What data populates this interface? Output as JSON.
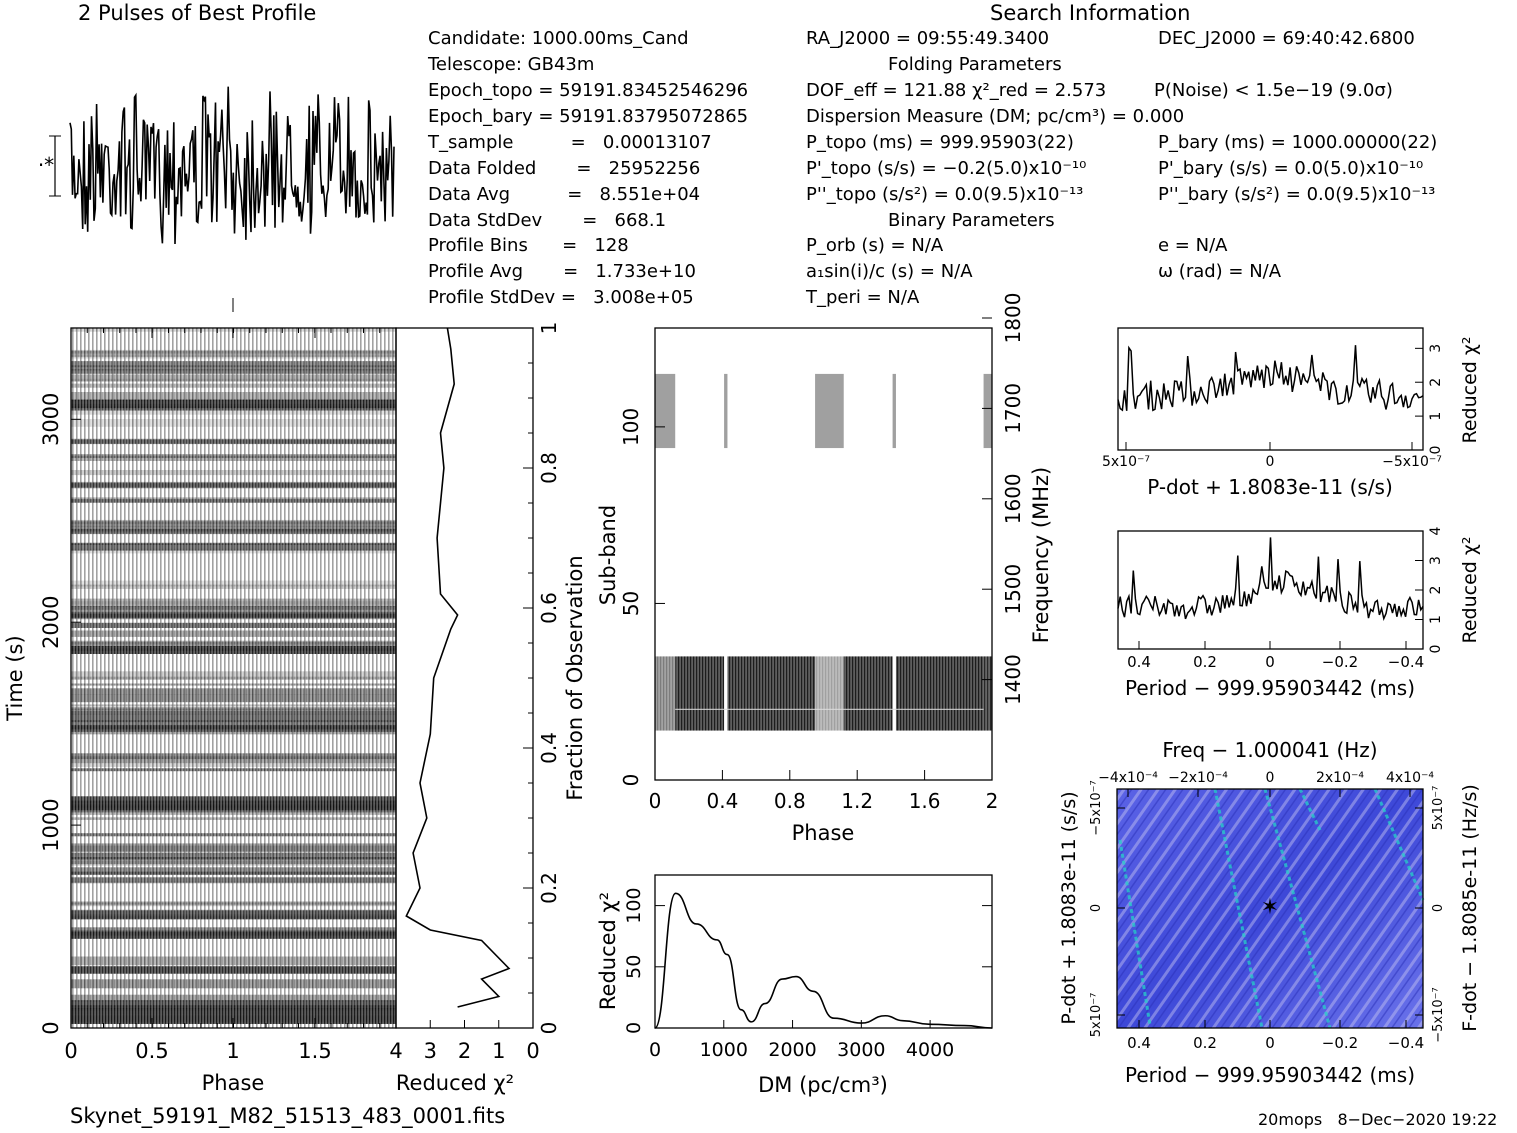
{
  "title_profile": "2 Pulses of Best Profile",
  "search_info_title": "Search Information",
  "candidate": {
    "candidate": "Candidate:  1000.00ms_Cand",
    "telescope": "Telescope:  GB43m",
    "epoch_topo": "Epoch_topo = 59191.83452546296",
    "epoch_bary": "Epoch_bary = 59191.83795072865",
    "t_sample": "T_sample          =   0.00013107",
    "data_folded": "Data Folded       =   25952256",
    "data_avg": "Data Avg          =   8.551e+04",
    "data_stddev": "Data StdDev       =   668.1",
    "profile_bins": "Profile Bins      =   128",
    "profile_avg": "Profile Avg       =   1.733e+10",
    "profile_stddev": "Profile StdDev =   3.008e+05"
  },
  "search": {
    "ra": "RA_J2000 = 09:55:49.3400",
    "dec": "DEC_J2000 = 69:40:42.6800",
    "folding_title": "Folding Parameters",
    "dof": "DOF_eff = 121.88  χ²_red = 2.573",
    "pnoise": "P(Noise) < 1.5e−19   (9.0σ)",
    "dm": "Dispersion Measure (DM; pc/cm³) = 0.000",
    "p_topo": "P_topo (ms) =  999.95903(22)",
    "p_bary": "P_bary (ms) =  1000.00000(22)",
    "pd_topo": "P'_topo (s/s) = −0.2(5.0)x10⁻¹⁰",
    "pd_bary": "P'_bary (s/s) = 0.0(5.0)x10⁻¹⁰",
    "pdd_topo": "P''_topo (s/s²) = 0.0(9.5)x10⁻¹³",
    "pdd_bary": "P''_bary (s/s²) = 0.0(9.5)x10⁻¹³",
    "binary_title": "Binary Parameters",
    "p_orb": "P_orb (s) = N/A",
    "e": "e = N/A",
    "a1sini": "a₁sin(i)/c (s) = N/A",
    "omega": "ω (rad) = N/A",
    "t_peri": "T_peri = N/A"
  },
  "footer": {
    "filename": "Skynet_59191_M82_51513_483_0001.fits",
    "stamp": "20mops   8−Dec−2020 19:22"
  },
  "colors": {
    "greyscale_dark": "#222222",
    "ppdot_blue": "#3d48d8",
    "ppdot_cyan": "#26d0c8"
  },
  "chart_data": [
    {
      "type": "line",
      "id": "pulse_profile",
      "title": "2 Pulses of Best Profile",
      "x": "phase 0–2",
      "values": "noisy profile, no clear pulse"
    },
    {
      "type": "heatmap",
      "id": "time_phase",
      "xlabel": "Phase",
      "ylabel": "Time (s)",
      "xlim": [
        0,
        2
      ],
      "ylim": [
        0,
        3450
      ],
      "xticks": [
        "0",
        "0.5",
        "1",
        "1.5"
      ],
      "yticks": [
        "0",
        "1000",
        "2000",
        "3000"
      ]
    },
    {
      "type": "line",
      "id": "time_chi2",
      "xlabel": "Reduced χ²",
      "ylabel": "Fraction of Observation",
      "xlim": [
        4,
        0
      ],
      "ylim": [
        0,
        1
      ],
      "xticks": [
        "4",
        "3",
        "2",
        "1",
        "0"
      ],
      "yticks": [
        "0",
        "0.2",
        "0.4",
        "0.6",
        "0.8",
        "1"
      ],
      "points": [
        [
          2.2,
          0.03
        ],
        [
          1.0,
          0.045
        ],
        [
          1.5,
          0.07
        ],
        [
          0.7,
          0.085
        ],
        [
          1.5,
          0.125
        ],
        [
          3.0,
          0.14
        ],
        [
          3.7,
          0.16
        ],
        [
          3.3,
          0.2
        ],
        [
          3.5,
          0.25
        ],
        [
          3.1,
          0.3
        ],
        [
          3.3,
          0.35
        ],
        [
          3.0,
          0.42
        ],
        [
          2.9,
          0.5
        ],
        [
          2.4,
          0.57
        ],
        [
          2.2,
          0.59
        ],
        [
          2.7,
          0.62
        ],
        [
          2.8,
          0.7
        ],
        [
          2.6,
          0.8
        ],
        [
          2.7,
          0.85
        ],
        [
          2.3,
          0.92
        ],
        [
          2.4,
          0.97
        ],
        [
          2.5,
          1.0
        ]
      ]
    },
    {
      "type": "heatmap",
      "id": "subband_phase",
      "xlabel": "Phase",
      "ylabel": "Sub-band",
      "y2label": "Frequency (MHz)",
      "xlim": [
        0,
        2
      ],
      "ylim": [
        0,
        128
      ],
      "y2lim": [
        1300,
        1800
      ],
      "xticks": [
        "0",
        "0.4",
        "0.8",
        "1.2",
        "1.6",
        "2"
      ],
      "yticks": [
        "0",
        "50",
        "100"
      ],
      "y2ticks": [
        "1400",
        "1500",
        "1600",
        "1700",
        "1800"
      ]
    },
    {
      "type": "line",
      "id": "dm_chi2",
      "xlabel": "DM (pc/cm³)",
      "ylabel": "Reduced χ²",
      "xlim": [
        0,
        4900
      ],
      "ylim": [
        0,
        125
      ],
      "xticks": [
        "0",
        "1000",
        "2000",
        "3000",
        "4000"
      ],
      "yticks": [
        "0",
        "50",
        "100"
      ],
      "points": [
        [
          0,
          0
        ],
        [
          300,
          110
        ],
        [
          600,
          85
        ],
        [
          900,
          72
        ],
        [
          1050,
          60
        ],
        [
          1250,
          15
        ],
        [
          1400,
          5
        ],
        [
          1600,
          20
        ],
        [
          1850,
          40
        ],
        [
          2050,
          42
        ],
        [
          2300,
          30
        ],
        [
          2600,
          8
        ],
        [
          3000,
          4
        ],
        [
          3350,
          10
        ],
        [
          3600,
          6
        ],
        [
          4000,
          3
        ],
        [
          4500,
          2
        ],
        [
          4900,
          0
        ]
      ]
    },
    {
      "type": "line",
      "id": "pdot_chi2",
      "xlabel": "P-dot + 1.8083e-11 (s/s)",
      "ylabel": "Reduced χ²",
      "xticks": [
        "5x10⁻⁷",
        "0",
        "−5x10⁻⁷"
      ],
      "yticks": [
        "0",
        "1",
        "2",
        "3"
      ],
      "ylim": [
        0,
        3.6
      ]
    },
    {
      "type": "line",
      "id": "period_chi2",
      "xlabel": "Period − 999.95903442 (ms)",
      "ylabel": "Reduced χ²",
      "xticks": [
        "0.4",
        "0.2",
        "0",
        "−0.2",
        "−0.4"
      ],
      "yticks": [
        "0",
        "1",
        "2",
        "3",
        "4"
      ],
      "ylim": [
        0,
        4
      ]
    },
    {
      "type": "heatmap",
      "id": "p_pdot",
      "title": "Freq − 1.000041 (Hz)",
      "xlabel": "Period − 999.95903442 (ms)",
      "ylabel": "P-dot + 1.8083e-11 (s/s)",
      "y2label": "F-dot − 1.8085e-11 (Hz/s)",
      "xticks": [
        "0.4",
        "0.2",
        "0",
        "−0.2",
        "−0.4"
      ],
      "x2ticks": [
        "−4x10⁻⁴",
        "−2x10⁻⁴",
        "0",
        "2x10⁻⁴",
        "4x10⁻⁴"
      ],
      "yticks": [
        "−5x10⁻⁷",
        "0",
        "5x10⁻⁷"
      ],
      "y2ticks": [
        "5x10⁻⁷",
        "0",
        "−5x10⁻⁷"
      ]
    }
  ]
}
